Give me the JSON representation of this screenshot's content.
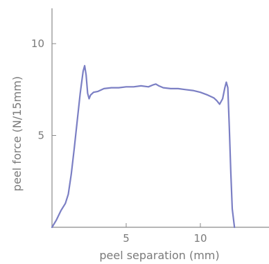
{
  "chart_data": {
    "type": "line",
    "title": "",
    "xlabel": "peel separation (mm)",
    "ylabel": "peel force (N/15mm)",
    "xlim": [
      0,
      14
    ],
    "ylim": [
      0,
      12
    ],
    "x_ticks": [
      {
        "value": 5,
        "label": "5"
      },
      {
        "value": 10,
        "label": "10"
      }
    ],
    "y_ticks": [
      {
        "value": 5,
        "label": "5"
      },
      {
        "value": 10,
        "label": "10"
      }
    ],
    "grid": false,
    "legend": "none",
    "axis_color": "#8a8a8a",
    "series": [
      {
        "color": "#7b7fc4",
        "x": [
          0.0,
          0.3,
          0.6,
          0.9,
          1.1,
          1.3,
          1.5,
          1.7,
          1.9,
          2.1,
          2.2,
          2.3,
          2.4,
          2.5,
          2.6,
          2.8,
          3.1,
          3.5,
          4.0,
          4.5,
          5.0,
          5.5,
          6.0,
          6.5,
          6.8,
          7.0,
          7.2,
          7.5,
          8.0,
          8.5,
          9.0,
          9.5,
          10.0,
          10.5,
          10.9,
          11.1,
          11.3,
          11.5,
          11.65,
          11.75,
          11.85,
          11.95,
          12.05,
          12.15,
          12.3
        ],
        "values": [
          0.0,
          0.4,
          0.9,
          1.3,
          1.8,
          2.9,
          4.3,
          5.8,
          7.3,
          8.5,
          8.8,
          8.3,
          7.3,
          7.0,
          7.2,
          7.35,
          7.4,
          7.55,
          7.6,
          7.6,
          7.65,
          7.65,
          7.7,
          7.65,
          7.75,
          7.8,
          7.7,
          7.6,
          7.55,
          7.55,
          7.5,
          7.45,
          7.35,
          7.2,
          7.05,
          6.9,
          6.7,
          7.0,
          7.6,
          7.9,
          7.6,
          5.5,
          3.0,
          1.0,
          0.0
        ]
      }
    ]
  }
}
